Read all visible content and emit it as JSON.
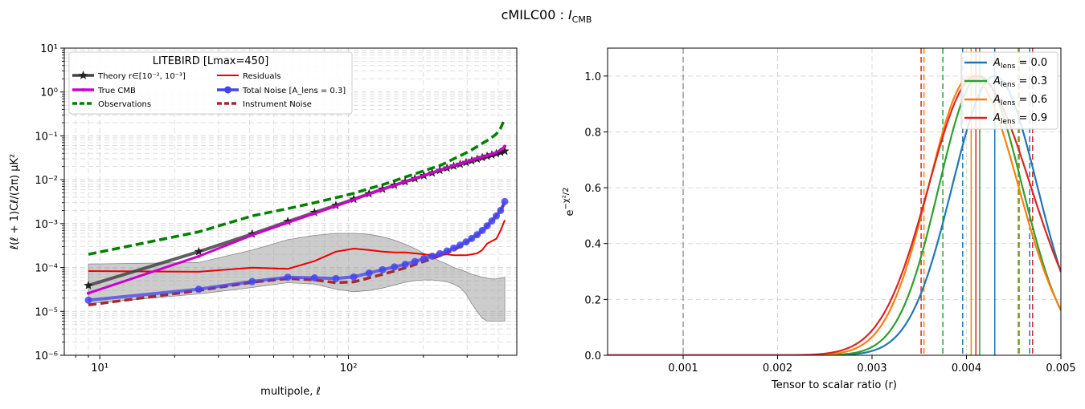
{
  "figure_title": "cMILC00 : ",
  "figure_title_math": "I",
  "figure_title_sub": "CMB",
  "chart_data": [
    {
      "type": "line",
      "xscale": "log",
      "yscale": "log",
      "xlabel": "multipole, ℓ",
      "ylabel": "ℓ(ℓ + 1)Cℓ/(2π)  μK²",
      "xlim": [
        7.2,
        475
      ],
      "ylim": [
        1e-06,
        10
      ],
      "grid": true,
      "x_tick_labels": [
        "10¹",
        "10²"
      ],
      "y_tick_labels": [
        "10⁻⁶",
        "10⁻⁵",
        "10⁻⁴",
        "10⁻³",
        "10⁻²",
        "10⁻¹",
        "10⁰",
        "10¹"
      ],
      "legend_title": "LITEBIRD [Lmax=450]",
      "legend_location": "upper left",
      "series": [
        {
          "name": "Theory r∈[10⁻², 10⁻³]",
          "color": "#444444",
          "style": "solid",
          "marker": "star",
          "x": [
            9,
            25,
            41,
            57,
            73,
            89,
            105,
            121,
            137,
            153,
            169,
            185,
            201,
            217,
            233,
            249,
            265,
            281,
            297,
            313,
            329,
            345,
            361,
            377,
            393,
            409,
            425
          ],
          "y": [
            3.9e-05,
            0.00023,
            0.00058,
            0.00112,
            0.0018,
            0.0026,
            0.0036,
            0.0048,
            0.0061,
            0.0075,
            0.009,
            0.0106,
            0.0124,
            0.0143,
            0.0163,
            0.0184,
            0.0205,
            0.0226,
            0.0248,
            0.0271,
            0.0295,
            0.032,
            0.0345,
            0.037,
            0.0396,
            0.0422,
            0.0448
          ]
        },
        {
          "name": "True CMB",
          "color": "#cc00cc",
          "style": "solid",
          "marker": "dot",
          "x": [
            9,
            25,
            41,
            57,
            73,
            89,
            105,
            121,
            137,
            153,
            169,
            185,
            201,
            217,
            233,
            249,
            265,
            281,
            297,
            313,
            329,
            345,
            361,
            377,
            393,
            409,
            425
          ],
          "y": [
            2.6e-05,
            0.00018,
            0.00055,
            0.00105,
            0.0017,
            0.0025,
            0.0035,
            0.0047,
            0.006,
            0.0074,
            0.009,
            0.0107,
            0.0125,
            0.0145,
            0.0166,
            0.0188,
            0.021,
            0.0232,
            0.0256,
            0.028,
            0.0305,
            0.033,
            0.0356,
            0.0385,
            0.042,
            0.048,
            0.058
          ]
        },
        {
          "name": "Observations",
          "color": "#008000",
          "style": "dashed",
          "marker": "none",
          "x": [
            9,
            25,
            41,
            57,
            73,
            89,
            105,
            121,
            137,
            153,
            169,
            185,
            201,
            217,
            233,
            249,
            265,
            281,
            297,
            313,
            329,
            345,
            361,
            377,
            393,
            409,
            425
          ],
          "y": [
            0.0002,
            0.00065,
            0.0015,
            0.0022,
            0.003,
            0.0039,
            0.0049,
            0.0063,
            0.0077,
            0.0095,
            0.0115,
            0.0136,
            0.016,
            0.0185,
            0.021,
            0.025,
            0.03,
            0.035,
            0.041,
            0.048,
            0.057,
            0.067,
            0.078,
            0.092,
            0.11,
            0.15,
            0.25
          ]
        },
        {
          "name": "Residuals",
          "color": "#ee0000",
          "style": "solid",
          "marker": "none",
          "x": [
            9,
            25,
            41,
            57,
            73,
            89,
            105,
            121,
            137,
            153,
            169,
            185,
            201,
            217,
            233,
            249,
            265,
            281,
            297,
            313,
            329,
            345,
            361,
            377,
            393,
            409,
            425
          ],
          "y": [
            8.3e-05,
            8e-05,
            9.9e-05,
            9.3e-05,
            0.00014,
            0.00023,
            0.00027,
            0.00025,
            0.00023,
            0.00022,
            0.00022,
            0.00021,
            0.0002,
            0.00019,
            0.00019,
            0.0002,
            0.00019,
            0.00019,
            0.00019,
            0.0002,
            0.00021,
            0.00025,
            0.00035,
            0.0004,
            0.00045,
            0.0007,
            0.0012
          ]
        },
        {
          "name": "Total Noise [A_lens = 0.3]",
          "color": "#4444ee",
          "style": "solid",
          "marker": "circle",
          "x": [
            9,
            25,
            41,
            57,
            73,
            89,
            105,
            121,
            137,
            153,
            169,
            185,
            201,
            217,
            233,
            249,
            265,
            281,
            297,
            313,
            329,
            345,
            361,
            377,
            393,
            409,
            425
          ],
          "y": [
            1.8e-05,
            3.2e-05,
            4.8e-05,
            6e-05,
            5.8e-05,
            5.6e-05,
            6.1e-05,
            7.5e-05,
            8.9e-05,
            0.000103,
            0.000118,
            0.000137,
            0.000159,
            0.000182,
            0.000207,
            0.000238,
            0.000277,
            0.000324,
            0.000383,
            0.000462,
            0.00056,
            0.0007,
            0.00089,
            0.00115,
            0.0015,
            0.002,
            0.0032
          ]
        },
        {
          "name": "Instrument Noise",
          "color": "#a52a2a",
          "style": "dashed",
          "marker": "none",
          "x": [
            9,
            25,
            41,
            57,
            73,
            89,
            105,
            121,
            137,
            153,
            169,
            185,
            201,
            217,
            233,
            249,
            265,
            281,
            297,
            313,
            329,
            345,
            361,
            377,
            393,
            409,
            425
          ],
          "y": [
            1.4e-05,
            3e-05,
            4.6e-05,
            5.6e-05,
            5.2e-05,
            4.5e-05,
            4.7e-05,
            5.8e-05,
            7e-05,
            8.3e-05,
            9.8e-05,
            0.000116,
            0.000137,
            0.00016,
            0.000186,
            0.000216,
            0.000254,
            0.0003,
            0.00036,
            0.00044,
            0.00054,
            0.00068,
            0.00087,
            0.00113,
            0.0015,
            0.002,
            0.003
          ]
        }
      ],
      "band": {
        "color": "#999999",
        "x": [
          9,
          25,
          41,
          57,
          73,
          89,
          105,
          121,
          137,
          153,
          169,
          185,
          201,
          217,
          233,
          249,
          265,
          281,
          297,
          313,
          329,
          345,
          361,
          377,
          393,
          409,
          425
        ],
        "lower": [
          1.5e-05,
          2.5e-05,
          3.5e-05,
          4.5e-05,
          4.2e-05,
          3.2e-05,
          2.8e-05,
          3e-05,
          3.4e-05,
          4e-05,
          4.6e-05,
          5e-05,
          5.2e-05,
          5.2e-05,
          5e-05,
          4.7e-05,
          4.2e-05,
          3.5e-05,
          2.5e-05,
          1.5e-05,
          1e-05,
          7e-06,
          6e-06,
          6e-06,
          6e-06,
          6e-06,
          6e-06
        ],
        "upper": [
          0.00012,
          0.00013,
          0.00025,
          0.00043,
          0.00054,
          0.0006,
          0.0006,
          0.00057,
          0.0005,
          0.00042,
          0.00034,
          0.00027,
          0.00021,
          0.00017,
          0.00014,
          0.00012,
          0.0001,
          9e-05,
          8e-05,
          7e-05,
          6.5e-05,
          6e-05,
          5.7e-05,
          5.5e-05,
          5.5e-05,
          5.7e-05,
          6e-05
        ]
      }
    },
    {
      "type": "line",
      "xlabel": "Tensor to scalar ratio (r)",
      "ylabel": "e^{-χ²/2}",
      "xlim": [
        0.0002,
        0.005
      ],
      "ylim": [
        0,
        1.1
      ],
      "grid": true,
      "x_ticks": [
        0.001,
        0.002,
        0.003,
        0.004,
        0.005
      ],
      "x_tick_labels": [
        "0.001",
        "0.002",
        "0.003",
        "0.004",
        "0.005"
      ],
      "y_ticks": [
        0,
        0.2,
        0.4,
        0.6,
        0.8,
        1.0
      ],
      "y_tick_labels": [
        "0.0",
        "0.2",
        "0.4",
        "0.6",
        "0.8",
        "1.0"
      ],
      "legend_location": "upper right",
      "reference_line": {
        "x": 0.001,
        "color": "#999999",
        "style": "dashed"
      },
      "series": [
        {
          "name": "A_lens = 0.0",
          "label_value": "0.0",
          "color": "#1f77b4",
          "peak": 0.0043,
          "sigma_left": 0.00045,
          "sigma_right": 0.00045,
          "best_fit": 0.0043,
          "lower": 0.00396,
          "upper": 0.00467
        },
        {
          "name": "A_lens = 0.3",
          "label_value": "0.3",
          "color": "#2ca02c",
          "peak": 0.00414,
          "sigma_left": 0.00043,
          "sigma_right": 0.00045,
          "best_fit": 0.00414,
          "lower": 0.00375,
          "upper": 0.00455
        },
        {
          "name": "A_lens = 0.6",
          "label_value": "0.6",
          "color": "#ff7f0e",
          "peak": 0.00405,
          "sigma_left": 0.00045,
          "sigma_right": 0.0005,
          "best_fit": 0.00405,
          "lower": 0.00355,
          "upper": 0.00456
        },
        {
          "name": "A_lens = 0.9",
          "label_value": "0.9",
          "color": "#d62728",
          "peak": 0.0041,
          "sigma_left": 0.0005,
          "sigma_right": 0.00058,
          "best_fit": 0.0041,
          "lower": 0.00352,
          "upper": 0.0047
        }
      ]
    }
  ]
}
